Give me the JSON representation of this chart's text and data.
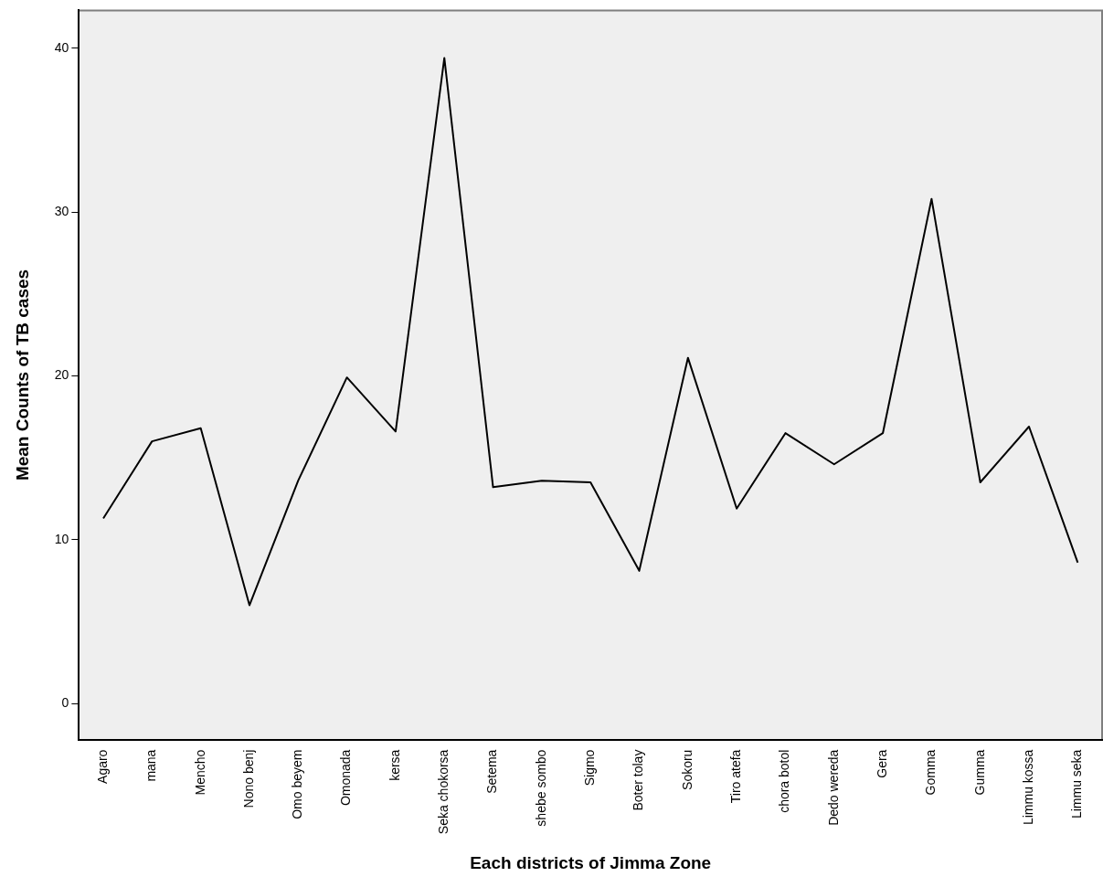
{
  "chart_data": {
    "type": "line",
    "xlabel": "Each districts of Jimma Zone",
    "ylabel": "Mean Counts of TB cases",
    "categories": [
      "Agaro",
      "mana",
      "Mencho",
      "Nono benj",
      "Omo beyem",
      "Omonada",
      "kersa",
      "Seka chokorsa",
      "Setema",
      "shebe sombo",
      "Sigmo",
      "Boter tolay",
      "Sokoru",
      "Tiro atefa",
      "chora botol",
      "Dedo wereda",
      "Gera",
      "Gomma",
      "Gumma",
      "Limmu kossa",
      "Limmu seka"
    ],
    "series": [
      {
        "color": "#000000",
        "values": [
          11.3,
          16.0,
          16.8,
          6.0,
          13.6,
          19.9,
          16.6,
          39.4,
          13.2,
          13.6,
          13.5,
          8.1,
          21.1,
          11.9,
          16.5,
          14.6,
          16.5,
          30.8,
          13.5,
          16.9,
          8.6
        ]
      }
    ],
    "ylim": [
      -2.2,
      42.3
    ],
    "yticks": [
      0,
      10,
      20,
      30,
      40
    ],
    "grid": false,
    "legend": false,
    "marker": "none",
    "line_style": "solid"
  }
}
